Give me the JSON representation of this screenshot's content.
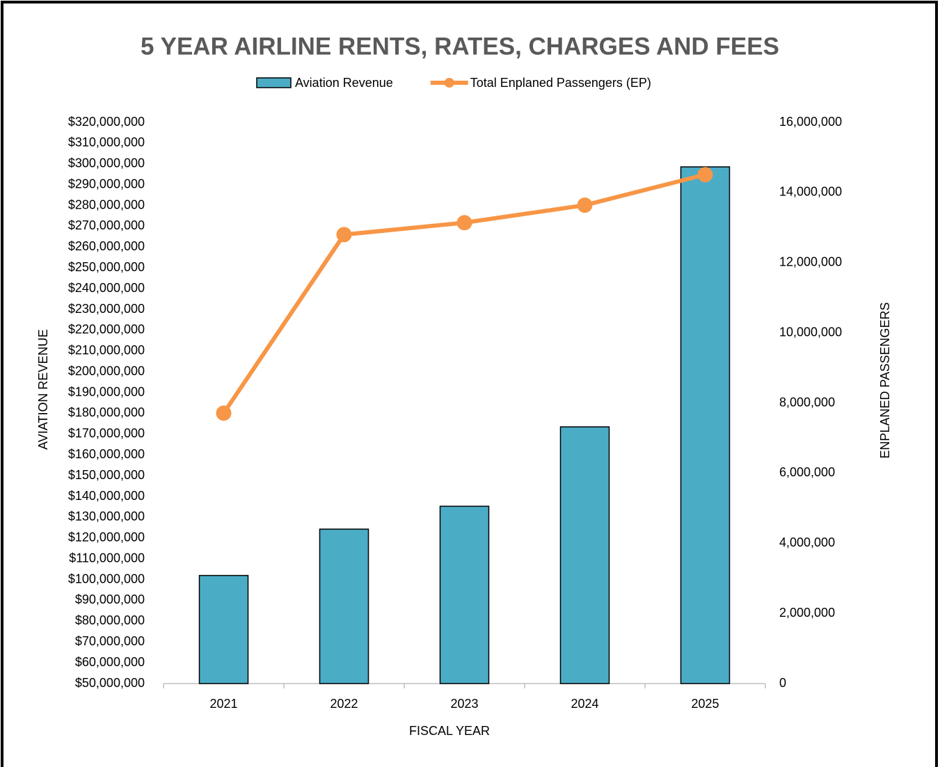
{
  "chart_data": {
    "type": "bar_line",
    "title": "5 YEAR AIRLINE RENTS, RATES, CHARGES AND FEES",
    "x_label": "FISCAL YEAR",
    "y_label": "AVIATION REVENUE",
    "y2_label": "ENPLANED PASSENGERS",
    "categories": [
      "2021",
      "2022",
      "2023",
      "2024",
      "2025"
    ],
    "series": [
      {
        "name": "Aviation Revenue",
        "type": "bar",
        "color": "#4bacc6",
        "values": [
          102000000,
          124300000,
          135300000,
          173500000,
          298600000
        ]
      },
      {
        "name": "Total Enplaned Passengers (EP)",
        "type": "line",
        "axis": "y2",
        "color": "#f79646",
        "values": [
          7710000,
          12800000,
          13140000,
          13640000,
          14510000
        ]
      }
    ],
    "ylim": [
      50000000,
      320000000
    ],
    "yticks": [
      {
        "value": 50000000,
        "label": "$50,000,000"
      },
      {
        "value": 60000000,
        "label": "$60,000,000"
      },
      {
        "value": 70000000,
        "label": "$70,000,000"
      },
      {
        "value": 80000000,
        "label": "$80,000,000"
      },
      {
        "value": 90000000,
        "label": "$90,000,000"
      },
      {
        "value": 100000000,
        "label": "$100,000,000"
      },
      {
        "value": 110000000,
        "label": "$110,000,000"
      },
      {
        "value": 120000000,
        "label": "$120,000,000"
      },
      {
        "value": 130000000,
        "label": "$130,000,000"
      },
      {
        "value": 140000000,
        "label": "$140,000,000"
      },
      {
        "value": 150000000,
        "label": "$150,000,000"
      },
      {
        "value": 160000000,
        "label": "$160,000,000"
      },
      {
        "value": 170000000,
        "label": "$170,000,000"
      },
      {
        "value": 180000000,
        "label": "$180,000,000"
      },
      {
        "value": 190000000,
        "label": "$190,000,000"
      },
      {
        "value": 200000000,
        "label": "$200,000,000"
      },
      {
        "value": 210000000,
        "label": "$210,000,000"
      },
      {
        "value": 220000000,
        "label": "$220,000,000"
      },
      {
        "value": 230000000,
        "label": "$230,000,000"
      },
      {
        "value": 240000000,
        "label": "$240,000,000"
      },
      {
        "value": 250000000,
        "label": "$250,000,000"
      },
      {
        "value": 260000000,
        "label": "$260,000,000"
      },
      {
        "value": 270000000,
        "label": "$270,000,000"
      },
      {
        "value": 280000000,
        "label": "$280,000,000"
      },
      {
        "value": 290000000,
        "label": "$290,000,000"
      },
      {
        "value": 300000000,
        "label": "$300,000,000"
      },
      {
        "value": 310000000,
        "label": "$310,000,000"
      },
      {
        "value": 320000000,
        "label": "$320,000,000"
      }
    ],
    "y2lim": [
      0,
      16000000
    ],
    "y2ticks": [
      0,
      {
        "value": 2000000,
        "label": "2,000,000"
      },
      {
        "value": 4000000,
        "label": "4,000,000"
      },
      {
        "value": 6000000,
        "label": "6,000,000"
      },
      {
        "value": 8000000,
        "label": "8,000,000"
      },
      {
        "value": 10000000,
        "label": "10,000,000"
      },
      {
        "value": 12000000,
        "label": "12,000,000"
      },
      {
        "value": 14000000,
        "label": "14,000,000"
      },
      {
        "value": 16000000,
        "label": "16,000,000"
      }
    ],
    "grid": false,
    "legend": "top"
  }
}
